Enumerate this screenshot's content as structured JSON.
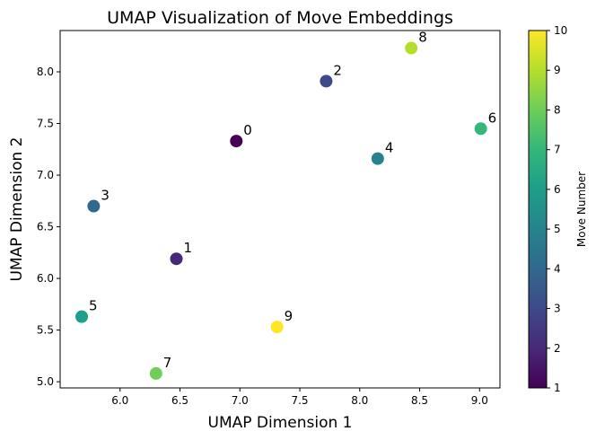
{
  "chart_data": {
    "type": "scatter",
    "title": "UMAP Visualization of Move Embeddings",
    "xlabel": "UMAP Dimension 1",
    "ylabel": "UMAP Dimension 2",
    "xlim": [
      5.5,
      9.17
    ],
    "ylim": [
      4.94,
      8.4
    ],
    "xticks": [
      6.0,
      6.5,
      7.0,
      7.5,
      8.0,
      8.5,
      9.0
    ],
    "yticks": [
      5.0,
      5.5,
      6.0,
      6.5,
      7.0,
      7.5,
      8.0
    ],
    "colorbar": {
      "label": "Move Number",
      "range": [
        1,
        10
      ],
      "ticks": [
        1,
        2,
        3,
        4,
        5,
        6,
        7,
        8,
        9,
        10
      ],
      "colormap": "viridis"
    },
    "points": [
      {
        "label": "0",
        "x": 6.97,
        "y": 7.33,
        "color_value": 1
      },
      {
        "label": "1",
        "x": 6.47,
        "y": 6.19,
        "color_value": 2
      },
      {
        "label": "2",
        "x": 7.72,
        "y": 7.91,
        "color_value": 3
      },
      {
        "label": "3",
        "x": 5.78,
        "y": 6.7,
        "color_value": 4
      },
      {
        "label": "4",
        "x": 8.15,
        "y": 7.16,
        "color_value": 5
      },
      {
        "label": "5",
        "x": 5.68,
        "y": 5.63,
        "color_value": 6
      },
      {
        "label": "6",
        "x": 9.01,
        "y": 7.45,
        "color_value": 7
      },
      {
        "label": "7",
        "x": 6.3,
        "y": 5.08,
        "color_value": 8
      },
      {
        "label": "8",
        "x": 8.43,
        "y": 8.23,
        "color_value": 9
      },
      {
        "label": "9",
        "x": 7.31,
        "y": 5.53,
        "color_value": 10
      }
    ]
  }
}
